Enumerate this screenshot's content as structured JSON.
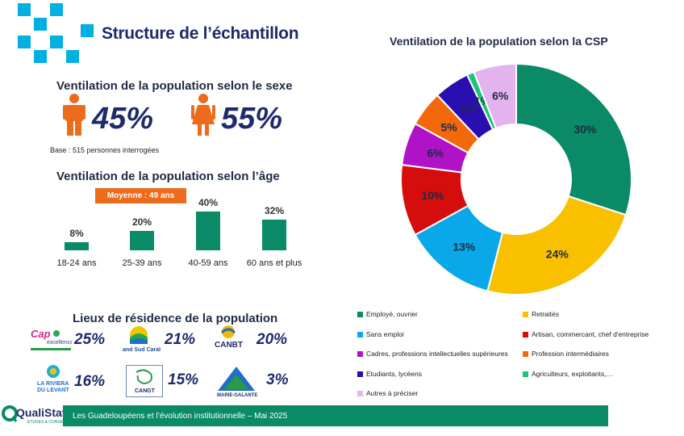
{
  "header": {
    "title": "Structure de l’échantillon",
    "decor_color": "#00b0e0"
  },
  "sexe": {
    "heading": "Ventilation de la population selon le sexe",
    "male_pct": "45%",
    "female_pct": "55%",
    "icon_color": "#ec6b1c",
    "base": "Base : 515 personnes interrogées"
  },
  "age": {
    "heading": "Ventilation de la population selon l’âge",
    "badge": "Moyenne : 49 ans",
    "bar_color": "#0a8a67",
    "groups": [
      {
        "label": "18-24 ans",
        "pct": "8%"
      },
      {
        "label": "25-39 ans",
        "pct": "20%"
      },
      {
        "label": "40-59 ans",
        "pct": "40%"
      },
      {
        "label": "60 ans et plus",
        "pct": "32%"
      }
    ]
  },
  "residence": {
    "heading": "Lieux de résidence de la population",
    "items": [
      {
        "logo_text": "Cap excellence",
        "pct": "25%"
      },
      {
        "logo_text": "and Sud Caraï",
        "pct": "21%"
      },
      {
        "logo_text": "CANBT",
        "pct": "20%"
      },
      {
        "logo_text": "LA RIVIERA DU LEVANT",
        "pct": "16%"
      },
      {
        "logo_text": "CANGT",
        "pct": "15%"
      },
      {
        "logo_text": "MARIE-GALANTE",
        "pct": "3%"
      }
    ]
  },
  "csp": {
    "heading": "Ventilation de la population selon la CSP"
  },
  "chart_data": [
    {
      "type": "bar",
      "title": "Ventilation de la population selon l’âge",
      "categories": [
        "18-24 ans",
        "25-39 ans",
        "40-59 ans",
        "60 ans et plus"
      ],
      "values": [
        8,
        20,
        40,
        32
      ],
      "ylim": [
        0,
        40
      ]
    },
    {
      "type": "pie",
      "title": "Ventilation de la population selon la CSP",
      "series": [
        {
          "name": "Employé, ouvrier",
          "value": 30,
          "label": "30%",
          "color": "#0a8a67"
        },
        {
          "name": "Retraités",
          "value": 24,
          "label": "24%",
          "color": "#f9c000"
        },
        {
          "name": "Sans emploi",
          "value": 13,
          "label": "13%",
          "color": "#0aa8e8"
        },
        {
          "name": "Artisan, commercant, chef d'entreprise",
          "value": 10,
          "label": "10%",
          "color": "#d60d0d"
        },
        {
          "name": "Cadres, professions intellectuelles supérieures",
          "value": 6,
          "label": "6%",
          "color": "#b012c8"
        },
        {
          "name": "Profession intermédiaires",
          "value": 5,
          "label": "5%",
          "color": "#f4680c"
        },
        {
          "name": "Etudiants, lycéens",
          "value": 5,
          "label": "5%",
          "color": "#2a0fb0"
        },
        {
          "name": "Agriculteurs, exploitants,…",
          "value": 1,
          "label": "1%",
          "color": "#1ec27a"
        },
        {
          "name": "Autres à préciser",
          "value": 6,
          "label": "6%",
          "color": "#e2b3ef"
        }
      ]
    }
  ],
  "footer": {
    "brand": "QualiStat",
    "brand_sub": "ETUDES & CONSEIL",
    "text": "Les Guadeloupéens et l’évolution institutionnelle – Mai  2025",
    "color": "#0a8a67"
  }
}
